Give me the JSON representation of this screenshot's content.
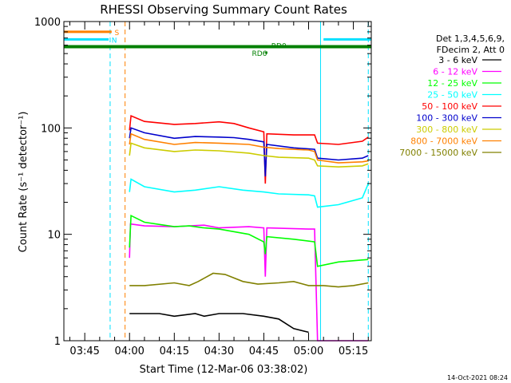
{
  "chart_data": {
    "type": "line",
    "title": "RHESSI Observing Summary Count Rates",
    "xlabel": "Start Time (12-Mar-06 03:38:02)",
    "ylabel": "Count Rate (s⁻¹ detector⁻¹)",
    "y_scale": "log",
    "ylim": [
      1,
      1000
    ],
    "xlim_minutes": [
      218,
      321
    ],
    "x_ticks": [
      {
        "label": "03:45",
        "t": 225
      },
      {
        "label": "04:00",
        "t": 240
      },
      {
        "label": "04:15",
        "t": 255
      },
      {
        "label": "04:30",
        "t": 270
      },
      {
        "label": "04:45",
        "t": 285
      },
      {
        "label": "05:00",
        "t": 300
      },
      {
        "label": "05:15",
        "t": 315
      }
    ],
    "y_ticks": [
      {
        "label": "1",
        "v": 1
      },
      {
        "label": "10",
        "v": 10
      },
      {
        "label": "100",
        "v": 100
      },
      {
        "label": "1000",
        "v": 1000
      }
    ],
    "legend_header": [
      "Det 1,3,4,5,6,9,",
      "FDecim 2, Att 0"
    ],
    "legend_position": "right",
    "timestamp": "14-Oct-2021 08:24",
    "flags": [
      {
        "label": "S",
        "color": "#ff8000",
        "value": 800,
        "segments": [
          [
            218,
            234
          ]
        ]
      },
      {
        "label": "N",
        "color": "#00e0ff",
        "value": 680,
        "segments": [
          [
            218,
            233
          ],
          [
            305,
            321
          ]
        ]
      },
      {
        "label": "",
        "color": "#008000",
        "value": 580,
        "segments": [
          [
            218,
            321
          ]
        ]
      },
      {
        "label": "RD6",
        "color": "#008000",
        "value": 510,
        "segments": [
          [
            285.5,
            286.2
          ]
        ]
      },
      {
        "label": "RD0",
        "color": "#008000",
        "value": 580,
        "segments": []
      }
    ],
    "vertical_markers": [
      {
        "t": 233.5,
        "color": "#00e0ff",
        "style": "dashed"
      },
      {
        "t": 238.5,
        "color": "#ff8000",
        "style": "dashed"
      },
      {
        "t": 304,
        "color": "#00e0ff",
        "style": "solid"
      },
      {
        "t": 320,
        "color": "#00e0ff",
        "style": "dashed"
      }
    ],
    "series": [
      {
        "name": "3 - 6 keV",
        "color": "#000000",
        "x": [
          240,
          250,
          255,
          262,
          265,
          270,
          278,
          285,
          290,
          295,
          300
        ],
        "y": [
          1.8,
          1.8,
          1.7,
          1.8,
          1.7,
          1.8,
          1.8,
          1.7,
          1.6,
          1.3,
          1.2
        ]
      },
      {
        "name": "6 - 12 keV",
        "color": "#ff00ff",
        "x": [
          240,
          240.3,
          245,
          255,
          265,
          270,
          280,
          285,
          285.5,
          286,
          300,
          302,
          303,
          310,
          320
        ],
        "y": [
          6,
          12.5,
          12,
          11.8,
          12.2,
          11.5,
          11.8,
          11.5,
          4,
          11.5,
          11.2,
          11.2,
          1,
          1,
          1
        ]
      },
      {
        "name": "12 - 25 keV",
        "color": "#00ff00",
        "x": [
          240,
          240.5,
          245,
          255,
          260,
          265,
          270,
          280,
          285,
          285.5,
          286,
          295,
          302,
          303,
          310,
          320
        ],
        "y": [
          7.5,
          15,
          13,
          11.8,
          12,
          11.5,
          11.2,
          10,
          8.5,
          6.5,
          9.5,
          9,
          8.5,
          5,
          5.5,
          5.8
        ]
      },
      {
        "name": "25 - 50 keV",
        "color": "#00ffff",
        "x": [
          240,
          240.5,
          245,
          255,
          262,
          270,
          278,
          285,
          290,
          300,
          302,
          303,
          310,
          318,
          320
        ],
        "y": [
          25,
          33,
          28,
          25,
          26,
          28,
          26,
          25,
          24,
          23.5,
          23,
          18,
          19,
          22,
          30
        ]
      },
      {
        "name": "50 - 100 keV",
        "color": "#ff0000",
        "x": [
          240,
          240.5,
          245,
          255,
          262,
          270,
          275,
          280,
          285,
          285.5,
          286,
          295,
          302,
          303,
          310,
          318,
          320
        ],
        "y": [
          95,
          130,
          115,
          108,
          110,
          114,
          110,
          100,
          92,
          30,
          88,
          86,
          86,
          72,
          70,
          75,
          82
        ]
      },
      {
        "name": "100 - 300 keV",
        "color": "#0000cc",
        "x": [
          240,
          240.5,
          245,
          255,
          262,
          270,
          275,
          280,
          285,
          285.5,
          286,
          295,
          302,
          303,
          310,
          318,
          320
        ],
        "y": [
          80,
          100,
          90,
          80,
          83,
          82,
          81,
          78,
          74,
          35,
          70,
          65,
          63,
          52,
          50,
          52,
          55
        ]
      },
      {
        "name": "300 - 800 keV",
        "color": "#cccc00",
        "x": [
          240,
          240.5,
          245,
          255,
          262,
          270,
          280,
          285,
          290,
          300,
          302,
          303,
          310,
          318,
          320
        ],
        "y": [
          55,
          72,
          65,
          60,
          62,
          61,
          58,
          55,
          53,
          52,
          50,
          44,
          43,
          44,
          46
        ]
      },
      {
        "name": "800 - 7000 keV",
        "color": "#ff8000",
        "x": [
          240,
          240.5,
          245,
          255,
          262,
          270,
          280,
          285,
          290,
          300,
          302,
          303,
          310,
          318,
          320
        ],
        "y": [
          70,
          88,
          78,
          70,
          73,
          72,
          70,
          66,
          64,
          62,
          60,
          50,
          47,
          48,
          49
        ]
      },
      {
        "name": "7000 - 15000 keV",
        "color": "#808000",
        "x": [
          240,
          245,
          255,
          260,
          263,
          268,
          272,
          278,
          283,
          290,
          295,
          300,
          305,
          310,
          315,
          320
        ],
        "y": [
          3.3,
          3.3,
          3.5,
          3.3,
          3.6,
          4.3,
          4.2,
          3.6,
          3.4,
          3.5,
          3.6,
          3.3,
          3.3,
          3.2,
          3.3,
          3.5
        ]
      }
    ]
  }
}
